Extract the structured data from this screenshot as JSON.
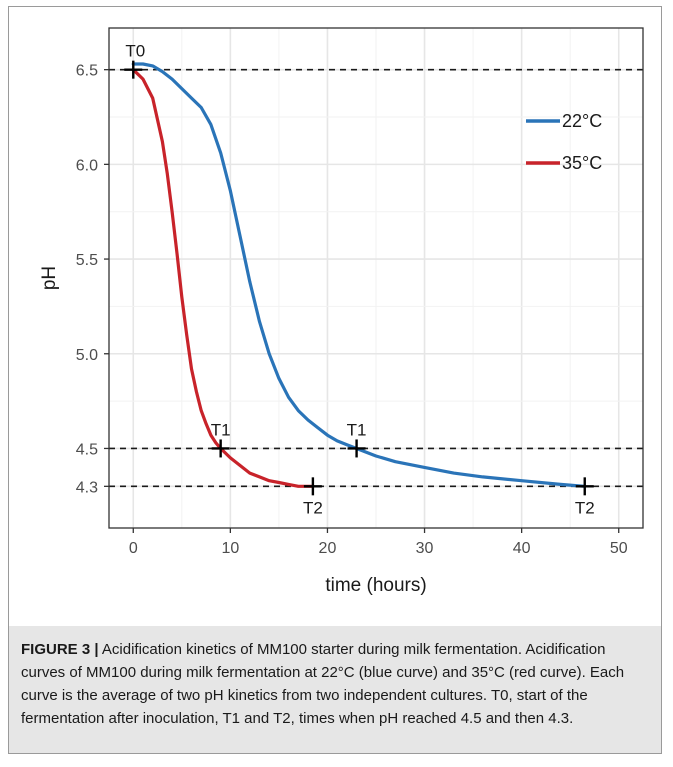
{
  "chart_data": {
    "type": "line",
    "xlabel": "time (hours)",
    "ylabel": "pH",
    "xlim": [
      -2.5,
      52.5
    ],
    "ylim": [
      4.08,
      6.72
    ],
    "xticks": [
      0,
      10,
      20,
      30,
      40,
      50
    ],
    "yticks": [
      6.5,
      6.0,
      5.5,
      5.0,
      4.5,
      4.3
    ],
    "ytick_labels": [
      "6.5",
      "6.0",
      "5.5",
      "5.0",
      "4.5",
      "4.3"
    ],
    "grid": true,
    "legend_position": "top-right",
    "reference_lines": [
      6.5,
      4.5,
      4.3
    ],
    "series": [
      {
        "name": "22°C",
        "color": "#2a74b8",
        "x": [
          0,
          1,
          2,
          3,
          4,
          5,
          6,
          7,
          8,
          9,
          10,
          11,
          12,
          13,
          14,
          15,
          16,
          17,
          18,
          19,
          20,
          21,
          22,
          23,
          25,
          27,
          30,
          33,
          36,
          40,
          44,
          46.5
        ],
        "y": [
          6.53,
          6.53,
          6.52,
          6.49,
          6.45,
          6.4,
          6.35,
          6.3,
          6.21,
          6.06,
          5.86,
          5.62,
          5.38,
          5.17,
          5.0,
          4.87,
          4.77,
          4.7,
          4.65,
          4.61,
          4.57,
          4.54,
          4.52,
          4.5,
          4.46,
          4.43,
          4.4,
          4.37,
          4.35,
          4.33,
          4.31,
          4.3
        ]
      },
      {
        "name": "35°C",
        "color": "#c8232a",
        "x": [
          0,
          1,
          2,
          3,
          3.5,
          4,
          4.5,
          5,
          5.5,
          6,
          6.5,
          7,
          7.5,
          8,
          8.5,
          9,
          10,
          11,
          12,
          13,
          14,
          15,
          16,
          17,
          18,
          18.5
        ],
        "y": [
          6.5,
          6.45,
          6.35,
          6.12,
          5.95,
          5.75,
          5.53,
          5.3,
          5.1,
          4.92,
          4.8,
          4.7,
          4.63,
          4.57,
          4.53,
          4.5,
          4.45,
          4.41,
          4.37,
          4.35,
          4.33,
          4.32,
          4.31,
          4.3,
          4.3,
          4.3
        ]
      }
    ],
    "markers": [
      {
        "label": "T0",
        "x": 0,
        "y": 6.5,
        "label_position": "above"
      },
      {
        "label": "T1",
        "x": 9,
        "y": 4.5,
        "label_position": "above"
      },
      {
        "label": "T2",
        "x": 18.5,
        "y": 4.3,
        "label_position": "below"
      },
      {
        "label": "T1",
        "x": 23,
        "y": 4.5,
        "label_position": "above"
      },
      {
        "label": "T2",
        "x": 46.5,
        "y": 4.3,
        "label_position": "below"
      }
    ]
  },
  "caption": {
    "label": "FIGURE 3 |",
    "text": " Acidification kinetics of MM100 starter during milk fermentation. Acidification curves of MM100 during milk fermentation at 22°C (blue curve) and 35°C (red curve). Each curve is the average of two pH kinetics from two independent cultures. T0, start of the fermentation after inoculation, T1 and T2, times when pH reached 4.5 and then 4.3."
  }
}
